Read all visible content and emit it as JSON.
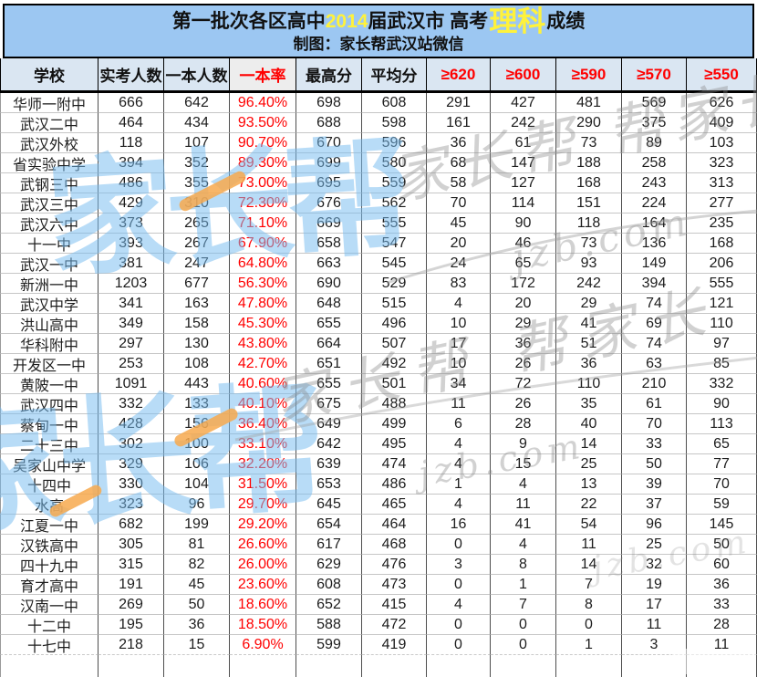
{
  "title": {
    "part1": "第一批次各区高中",
    "year": "2014",
    "part2": "届武汉市 高考",
    "highlight": "理科",
    "part3": "成绩",
    "subtitle": "制图：家长帮武汉站微信"
  },
  "columns": [
    "学校",
    "实考人数",
    "一本人数",
    "一本率",
    "最高分",
    "平均分",
    "≥620",
    "≥600",
    "≥590",
    "≥570",
    "≥550"
  ],
  "rows": [
    [
      "华师一附中",
      "666",
      "642",
      "96.40%",
      "698",
      "608",
      "291",
      "427",
      "481",
      "569",
      "626"
    ],
    [
      "武汉二中",
      "464",
      "434",
      "93.50%",
      "688",
      "598",
      "161",
      "242",
      "290",
      "375",
      "409"
    ],
    [
      "武汉外校",
      "118",
      "107",
      "90.70%",
      "670",
      "596",
      "36",
      "61",
      "73",
      "89",
      "103"
    ],
    [
      "省实验中学",
      "394",
      "352",
      "89.30%",
      "699",
      "580",
      "68",
      "147",
      "188",
      "258",
      "323"
    ],
    [
      "武钢三中",
      "486",
      "355",
      "73.00%",
      "695",
      "559",
      "58",
      "127",
      "168",
      "243",
      "313"
    ],
    [
      "武汉三中",
      "429",
      "310",
      "72.30%",
      "676",
      "562",
      "70",
      "114",
      "151",
      "224",
      "277"
    ],
    [
      "武汉六中",
      "373",
      "265",
      "71.10%",
      "669",
      "555",
      "45",
      "90",
      "118",
      "164",
      "235"
    ],
    [
      "十一中",
      "393",
      "267",
      "67.90%",
      "658",
      "547",
      "20",
      "46",
      "73",
      "136",
      "168"
    ],
    [
      "武汉一中",
      "381",
      "247",
      "64.80%",
      "663",
      "545",
      "24",
      "65",
      "93",
      "149",
      "206"
    ],
    [
      "新洲一中",
      "1203",
      "677",
      "56.30%",
      "690",
      "529",
      "83",
      "172",
      "242",
      "394",
      "555"
    ],
    [
      "武汉中学",
      "341",
      "163",
      "47.80%",
      "648",
      "515",
      "4",
      "20",
      "29",
      "74",
      "121"
    ],
    [
      "洪山高中",
      "349",
      "158",
      "45.30%",
      "655",
      "496",
      "10",
      "29",
      "41",
      "69",
      "110"
    ],
    [
      "华科附中",
      "297",
      "130",
      "43.80%",
      "664",
      "507",
      "17",
      "36",
      "51",
      "74",
      "97"
    ],
    [
      "开发区一中",
      "253",
      "108",
      "42.70%",
      "651",
      "492",
      "10",
      "26",
      "36",
      "63",
      "85"
    ],
    [
      "黄陂一中",
      "1091",
      "443",
      "40.60%",
      "655",
      "501",
      "34",
      "72",
      "110",
      "210",
      "332"
    ],
    [
      "武汉四中",
      "332",
      "133",
      "40.10%",
      "675",
      "488",
      "11",
      "26",
      "35",
      "61",
      "90"
    ],
    [
      "蔡甸一中",
      "428",
      "156",
      "36.40%",
      "649",
      "499",
      "6",
      "28",
      "40",
      "70",
      "113"
    ],
    [
      "二十三中",
      "302",
      "100",
      "33.10%",
      "642",
      "495",
      "4",
      "9",
      "14",
      "33",
      "65"
    ],
    [
      "吴家山中学",
      "329",
      "106",
      "32.20%",
      "639",
      "474",
      "4",
      "15",
      "25",
      "50",
      "77"
    ],
    [
      "十四中",
      "330",
      "104",
      "31.50%",
      "653",
      "486",
      "1",
      "4",
      "13",
      "39",
      "70"
    ],
    [
      "水高",
      "323",
      "96",
      "29.70%",
      "645",
      "465",
      "4",
      "11",
      "22",
      "37",
      "59"
    ],
    [
      "江夏一中",
      "682",
      "199",
      "29.20%",
      "654",
      "464",
      "16",
      "41",
      "54",
      "96",
      "145"
    ],
    [
      "汉铁高中",
      "305",
      "81",
      "26.60%",
      "617",
      "468",
      "0",
      "4",
      "11",
      "25",
      "50"
    ],
    [
      "四十九中",
      "315",
      "82",
      "26.00%",
      "629",
      "476",
      "3",
      "8",
      "14",
      "32",
      "60"
    ],
    [
      "育才高中",
      "191",
      "45",
      "23.60%",
      "608",
      "473",
      "0",
      "1",
      "7",
      "19",
      "36"
    ],
    [
      "汉南一中",
      "269",
      "50",
      "18.60%",
      "652",
      "415",
      "4",
      "7",
      "8",
      "17",
      "33"
    ],
    [
      "十二中",
      "195",
      "36",
      "18.50%",
      "588",
      "472",
      "0",
      "0",
      "0",
      "11",
      "28"
    ],
    [
      "十七中",
      "218",
      "15",
      "6.90%",
      "599",
      "419",
      "0",
      "0",
      "1",
      "3",
      "11"
    ]
  ],
  "watermarks": {
    "logo": "家长帮",
    "script": "家长帮 帮家长",
    "site": "jzb.com"
  },
  "colors": {
    "band_bg": "#9CC7F2",
    "header_bg": "#DAE6F2",
    "rate_bg": "#EDEDED",
    "red": "#FF0000",
    "yellow": "#FFF23B",
    "logo_blue": "rgba(118,188,240,0.52)",
    "slash_orange": "rgba(247,169,77,0.85)",
    "script_gray": "rgba(135,135,135,0.38)"
  }
}
